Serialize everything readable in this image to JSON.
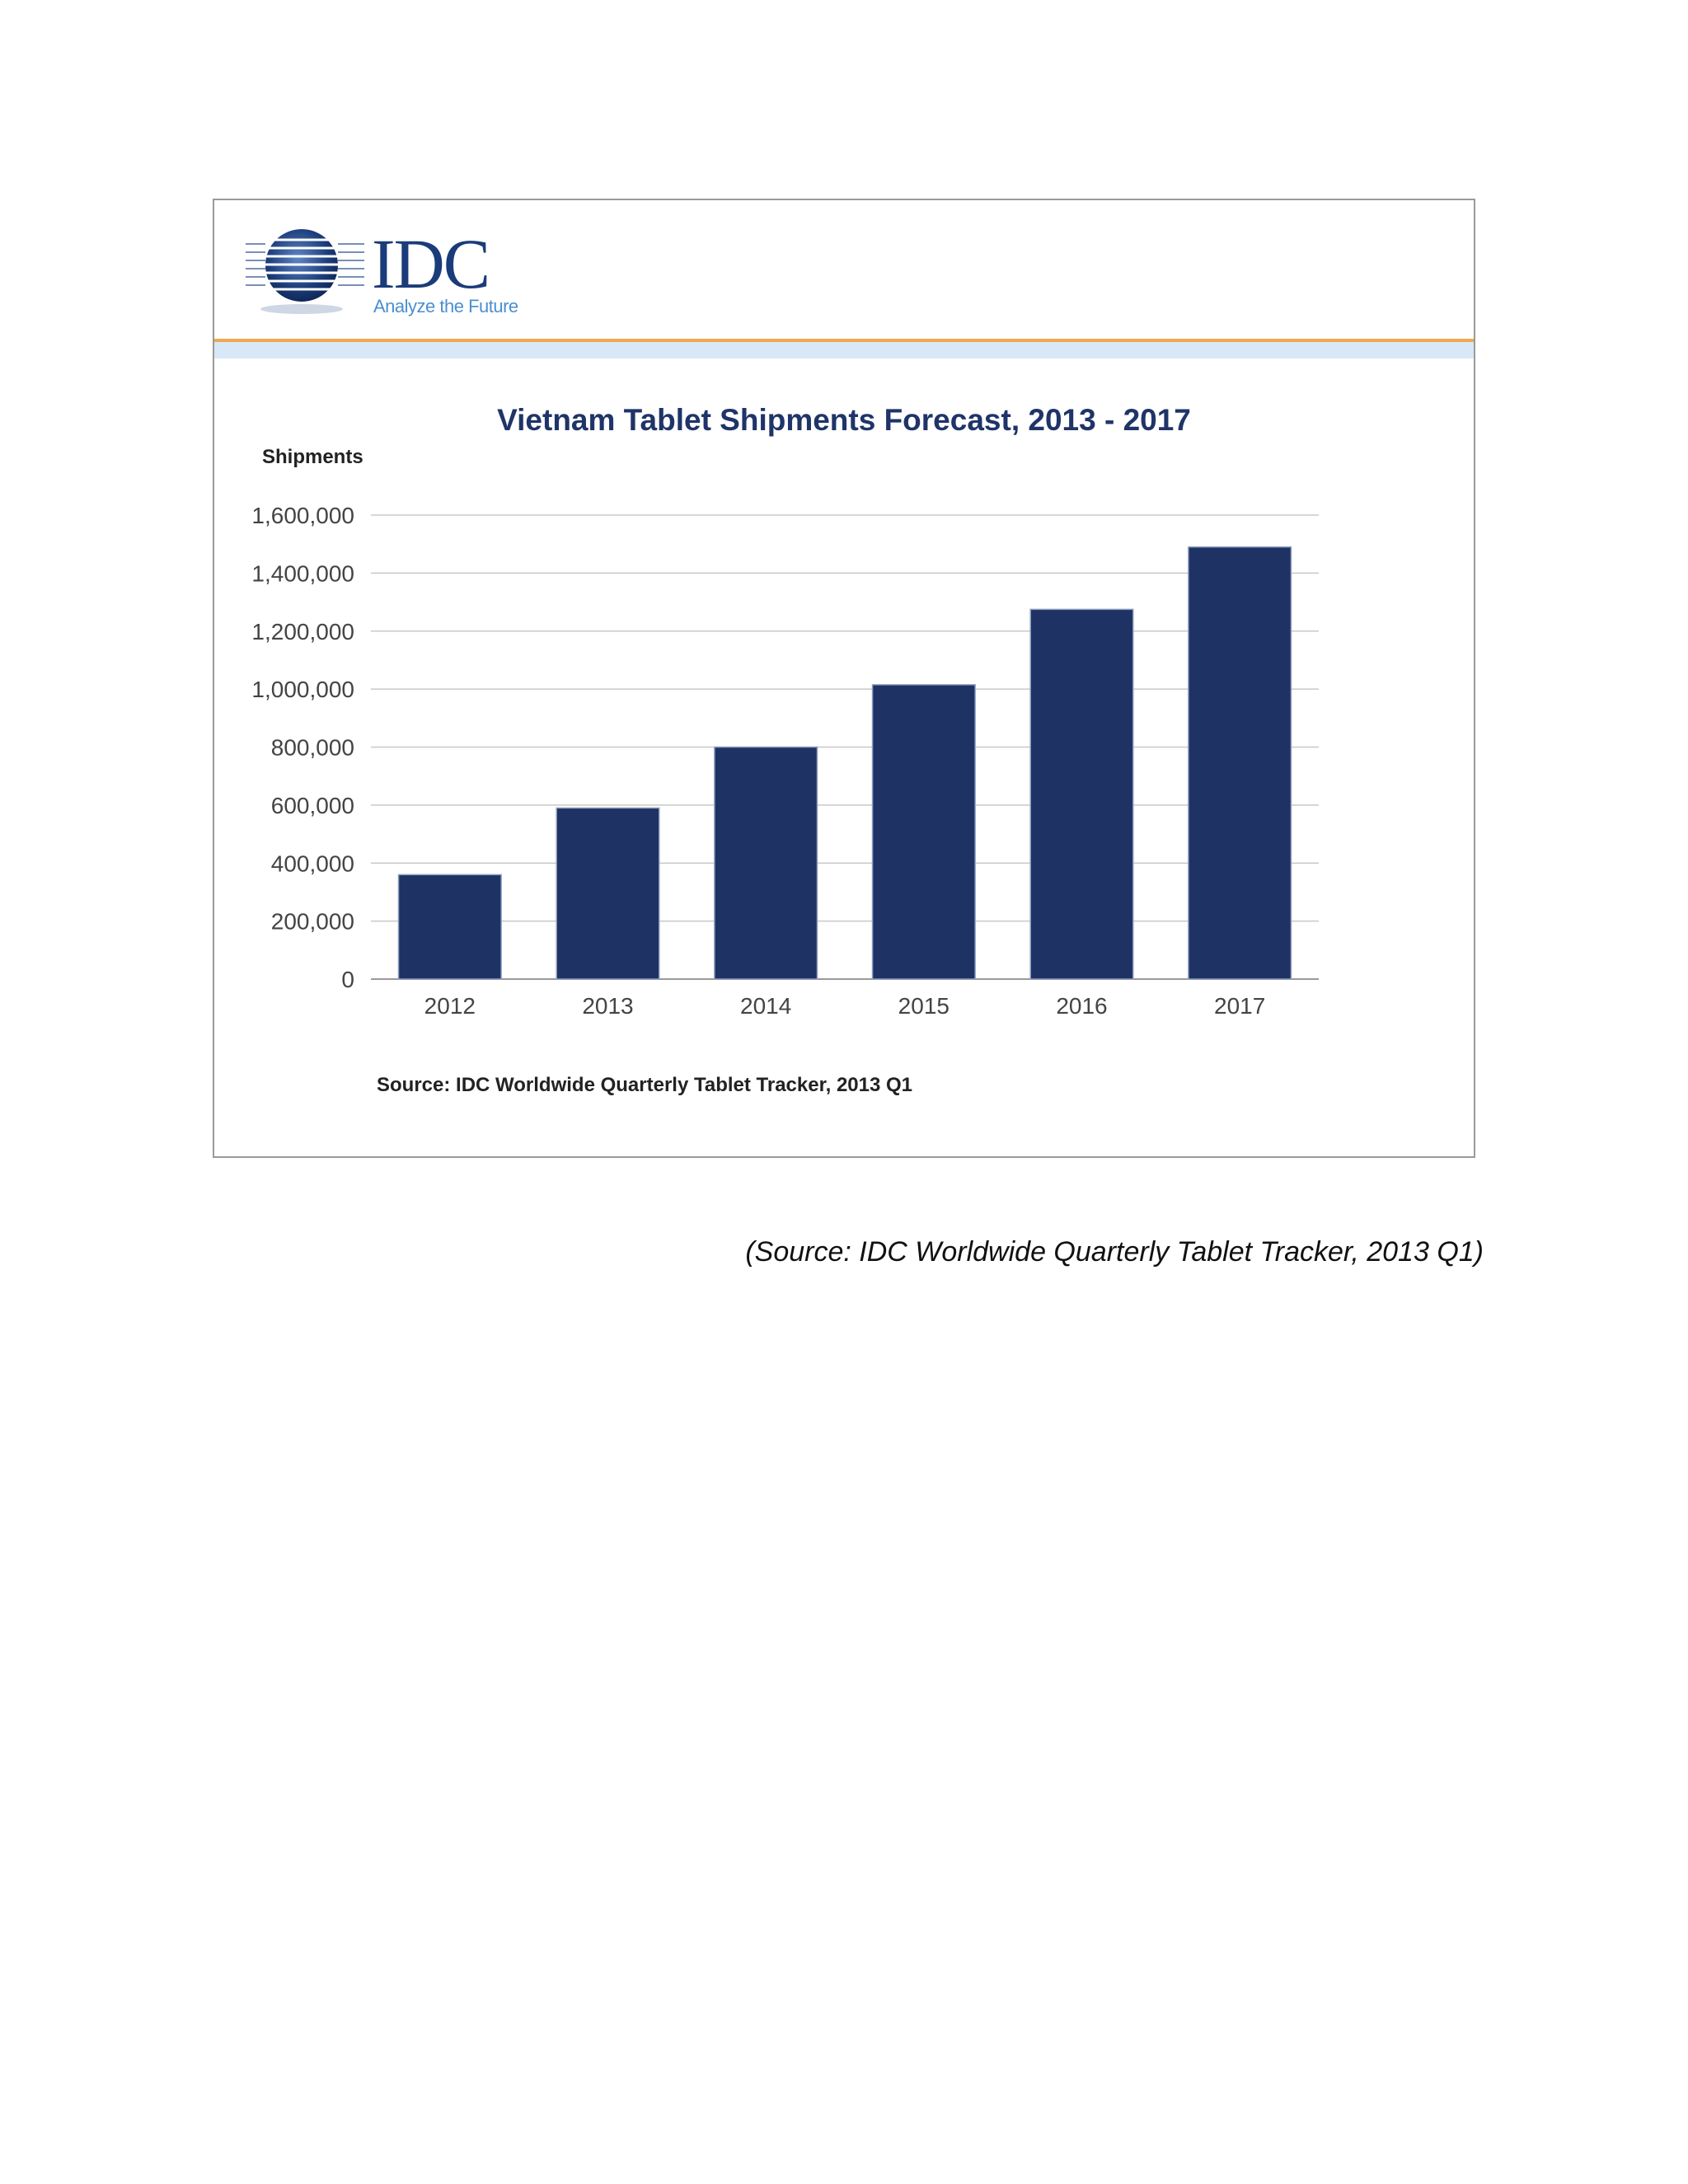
{
  "logo": {
    "wordmark": "IDC",
    "tagline": "Analyze the Future",
    "brand_color": "#1b3c7a",
    "tagline_color": "#4a8fd0",
    "icon": "idc-globe-icon"
  },
  "chart_data": {
    "type": "bar",
    "title": "Vietnam Tablet Shipments Forecast, 2013 - 2017",
    "ylabel": "Shipments",
    "xlabel": "",
    "categories": [
      "2012",
      "2013",
      "2014",
      "2015",
      "2016",
      "2017"
    ],
    "values": [
      360000,
      590000,
      800000,
      1015000,
      1275000,
      1490000
    ],
    "ylim": [
      0,
      1600000
    ],
    "yticks": [
      0,
      200000,
      400000,
      600000,
      800000,
      1000000,
      1200000,
      1400000,
      1600000
    ],
    "ytick_labels": [
      "0",
      "200,000",
      "400,000",
      "600,000",
      "800,000",
      "1,000,000",
      "1,200,000",
      "1,400,000",
      "1,600,000"
    ],
    "grid": true,
    "legend": "none",
    "bar_color": "#1e3264",
    "source": "Source: IDC Worldwide Quarterly Tablet Tracker, 2013 Q1"
  },
  "caption": "(Source: IDC Worldwide Quarterly Tablet Tracker, 2013 Q1)"
}
